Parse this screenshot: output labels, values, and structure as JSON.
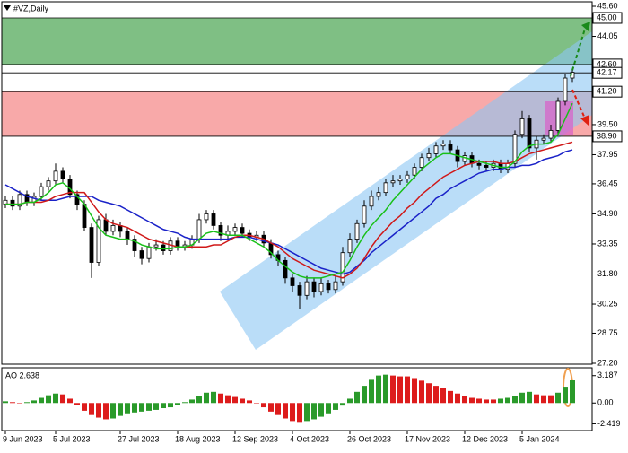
{
  "chart_data": [
    {
      "type": "candlestick",
      "title": "#VZ,Daily",
      "categories": [
        "9 Jun 2023",
        null,
        null,
        null,
        null,
        null,
        null,
        "5 Jul 2023",
        null,
        null,
        null,
        null,
        null,
        null,
        null,
        null,
        "27 Jul 2023",
        null,
        null,
        null,
        null,
        null,
        null,
        null,
        "18 Aug 2023",
        null,
        null,
        null,
        null,
        null,
        null,
        null,
        "12 Sep 2023",
        null,
        null,
        null,
        null,
        null,
        null,
        null,
        "4 Oct 2023",
        null,
        null,
        null,
        null,
        null,
        null,
        null,
        "26 Oct 2023",
        null,
        null,
        null,
        null,
        null,
        null,
        null,
        "17 Nov 2023",
        null,
        null,
        null,
        null,
        null,
        null,
        null,
        "12 Dec 2023",
        null,
        null,
        null,
        null,
        null,
        null,
        null,
        "5 Jan 2024",
        null,
        null,
        null,
        null,
        null,
        null,
        null
      ],
      "open": [
        35.4,
        35.6,
        35.3,
        35.9,
        35.5,
        35.8,
        36.3,
        36.6,
        37.1,
        36.7,
        35.9,
        35.4,
        34.2,
        32.4,
        34.6,
        34.0,
        34.3,
        34.0,
        33.6,
        33.0,
        32.6,
        33.2,
        33.3,
        33.0,
        33.5,
        33.2,
        33.3,
        33.6,
        34.6,
        34.9,
        34.3,
        33.8,
        34.0,
        34.2,
        33.9,
        33.7,
        33.8,
        33.4,
        32.8,
        32.5,
        31.6,
        31.2,
        30.7,
        31.4,
        30.9,
        31.3,
        31.0,
        31.4,
        32.9,
        33.6,
        34.4,
        35.3,
        35.8,
        36.0,
        36.5,
        36.6,
        36.7,
        36.9,
        37.3,
        37.8,
        38.0,
        38.4,
        38.5,
        38.2,
        37.6,
        37.9,
        37.5,
        37.4,
        37.3,
        37.5,
        37.2,
        37.5,
        39.0,
        39.8,
        38.3,
        38.7,
        38.8,
        39.2,
        40.7,
        41.9
      ],
      "high": [
        35.8,
        35.8,
        36.1,
        36.1,
        36.0,
        36.5,
        36.8,
        37.5,
        37.3,
        36.9,
        36.1,
        35.6,
        34.4,
        34.8,
        34.9,
        34.6,
        34.5,
        34.2,
        33.8,
        33.2,
        33.4,
        33.6,
        33.5,
        33.7,
        33.7,
        33.5,
        33.8,
        34.9,
        35.1,
        35.1,
        34.5,
        34.3,
        34.4,
        34.4,
        34.1,
        34.0,
        34.0,
        33.6,
        33.0,
        32.7,
        31.8,
        31.4,
        31.7,
        31.6,
        31.6,
        31.5,
        31.7,
        33.2,
        33.9,
        34.6,
        35.6,
        36.1,
        36.3,
        36.7,
        36.9,
        36.9,
        37.1,
        37.5,
        38.0,
        38.3,
        38.6,
        38.7,
        38.7,
        38.4,
        38.1,
        38.1,
        37.7,
        37.6,
        37.7,
        37.7,
        37.7,
        39.2,
        40.2,
        40.0,
        38.9,
        39.0,
        39.5,
        40.9,
        42.1,
        42.4
      ],
      "low": [
        35.2,
        35.1,
        35.1,
        35.3,
        35.3,
        35.6,
        36.1,
        36.4,
        36.5,
        35.7,
        35.1,
        34.0,
        31.6,
        32.2,
        33.8,
        33.8,
        33.7,
        33.3,
        32.7,
        32.3,
        32.4,
        33.0,
        32.8,
        32.8,
        33.0,
        33.0,
        33.1,
        33.4,
        34.4,
        34.1,
        33.5,
        33.6,
        33.8,
        33.7,
        33.5,
        33.5,
        33.2,
        32.6,
        32.2,
        31.3,
        30.9,
        30.0,
        30.5,
        30.6,
        30.7,
        30.8,
        30.8,
        31.2,
        32.7,
        33.4,
        34.2,
        35.1,
        35.6,
        35.8,
        36.3,
        36.4,
        36.5,
        36.7,
        37.1,
        37.6,
        37.8,
        38.2,
        38.0,
        37.3,
        37.4,
        37.3,
        37.2,
        37.1,
        37.1,
        37.0,
        37.0,
        37.3,
        38.8,
        38.1,
        37.7,
        38.5,
        38.6,
        39.0,
        40.5,
        41.7
      ],
      "close": [
        35.6,
        35.3,
        35.9,
        35.5,
        35.8,
        36.3,
        36.6,
        37.1,
        36.7,
        35.9,
        35.4,
        34.2,
        32.4,
        34.6,
        34.0,
        34.3,
        34.0,
        33.6,
        33.0,
        32.6,
        33.2,
        33.3,
        33.0,
        33.5,
        33.2,
        33.3,
        33.6,
        34.6,
        34.9,
        34.3,
        33.8,
        34.0,
        34.2,
        33.9,
        33.7,
        33.8,
        33.4,
        32.8,
        32.5,
        31.6,
        31.2,
        30.7,
        31.4,
        30.9,
        31.3,
        31.0,
        31.4,
        32.9,
        33.6,
        34.4,
        35.3,
        35.8,
        36.0,
        36.5,
        36.6,
        36.7,
        36.9,
        37.3,
        37.8,
        38.0,
        38.4,
        38.5,
        38.2,
        37.6,
        37.9,
        37.5,
        37.4,
        37.3,
        37.5,
        37.2,
        37.5,
        39.0,
        39.8,
        38.3,
        38.7,
        38.8,
        39.2,
        40.7,
        41.9,
        42.2
      ],
      "up_color": "#ffffff",
      "down_color": "#000000",
      "lines": [
        {
          "color": "#1a22c8",
          "values": [
            36.4,
            36.2,
            36.0,
            35.8,
            35.7,
            35.6,
            35.6,
            35.6,
            35.7,
            35.8,
            35.8,
            35.8,
            35.8,
            35.6,
            35.5,
            35.4,
            35.3,
            35.1,
            34.9,
            34.7,
            34.5,
            34.3,
            34.1,
            34.0,
            33.9,
            33.7,
            33.6,
            33.6,
            33.6,
            33.6,
            33.6,
            33.6,
            33.7,
            33.7,
            33.7,
            33.6,
            33.5,
            33.4,
            33.3,
            33.1,
            32.9,
            32.7,
            32.5,
            32.3,
            32.1,
            32.0,
            31.9,
            31.8,
            31.9,
            32.2,
            32.5,
            32.9,
            33.2,
            33.5,
            33.8,
            34.1,
            34.4,
            34.7,
            35.0,
            35.3,
            35.7,
            35.9,
            36.2,
            36.4,
            36.6,
            36.8,
            37.0,
            37.1,
            37.2,
            37.2,
            37.3,
            37.3,
            37.4,
            37.4,
            37.5,
            37.7,
            37.8,
            37.9,
            38.1,
            38.2
          ]
        },
        {
          "color": "#d01818",
          "values": [
            35.4,
            35.4,
            35.4,
            35.5,
            35.5,
            35.5,
            35.6,
            35.8,
            35.9,
            36.0,
            36.0,
            36.0,
            35.5,
            35.0,
            34.6,
            34.4,
            34.3,
            34.2,
            34.0,
            33.8,
            33.6,
            33.5,
            33.4,
            33.3,
            33.2,
            33.2,
            33.2,
            33.2,
            33.2,
            33.3,
            33.3,
            33.5,
            33.7,
            33.8,
            33.8,
            33.7,
            33.6,
            33.4,
            33.2,
            32.9,
            32.6,
            32.4,
            32.2,
            32.0,
            31.9,
            31.8,
            31.7,
            31.6,
            31.8,
            32.1,
            32.6,
            33.2,
            33.7,
            34.1,
            34.5,
            34.8,
            35.2,
            35.5,
            35.9,
            36.2,
            36.5,
            36.8,
            37.0,
            37.2,
            37.4,
            37.5,
            37.6,
            37.6,
            37.6,
            37.5,
            37.5,
            37.6,
            37.8,
            38.0,
            38.1,
            38.2,
            38.3,
            38.4,
            38.5,
            38.6
          ]
        },
        {
          "color": "#18c018",
          "values": [
            35.4,
            35.4,
            35.4,
            35.5,
            35.5,
            35.7,
            36.0,
            36.4,
            36.5,
            36.2,
            35.8,
            35.4,
            34.8,
            34.2,
            33.8,
            33.7,
            33.6,
            33.6,
            33.5,
            33.3,
            33.2,
            33.1,
            33.1,
            33.1,
            33.2,
            33.2,
            33.3,
            33.6,
            33.9,
            34.0,
            33.9,
            33.8,
            33.8,
            33.8,
            33.6,
            33.4,
            33.2,
            32.9,
            32.5,
            32.2,
            31.9,
            31.7,
            31.6,
            31.6,
            31.6,
            31.7,
            31.8,
            31.9,
            32.5,
            33.2,
            33.8,
            34.3,
            34.7,
            35.1,
            35.6,
            36.0,
            36.4,
            36.8,
            37.2,
            37.5,
            37.8,
            38.0,
            38.0,
            37.9,
            37.8,
            37.7,
            37.6,
            37.5,
            37.4,
            37.3,
            37.3,
            37.6,
            38.1,
            38.4,
            38.5,
            38.5,
            38.6,
            39.0,
            39.8,
            40.6
          ]
        }
      ],
      "zones": [
        {
          "from": 42.6,
          "to": 45.0,
          "color": "#7fbf84"
        },
        {
          "from": 38.9,
          "to": 41.2,
          "color": "#f8a9a9"
        }
      ],
      "levels": [
        {
          "value": 45.0,
          "label": "45.00"
        },
        {
          "value": 42.6,
          "label": "42.60"
        },
        {
          "value": 42.17,
          "label": "42.17"
        },
        {
          "value": 41.2,
          "label": "41.20"
        },
        {
          "value": 38.9,
          "label": "38.90"
        }
      ],
      "ylim": [
        27.2,
        45.6
      ],
      "yticks": [
        {
          "value": 45.6,
          "label": "45.60"
        },
        44.05,
        {
          "value": 39.5,
          "label": "39.50"
        },
        37.95,
        36.45,
        {
          "value": 34.9,
          "label": "34.90"
        },
        33.35,
        {
          "value": 31.8,
          "label": "31.80"
        },
        30.25,
        28.75,
        {
          "value": 27.2,
          "label": "27.20"
        }
      ]
    },
    {
      "type": "histogram",
      "title": "AO 2.638",
      "values": [
        0.2,
        0.1,
        0.0,
        0.1,
        0.3,
        0.6,
        0.9,
        1.1,
        1.0,
        0.5,
        -0.2,
        -0.9,
        -1.4,
        -1.7,
        -1.9,
        -1.8,
        -1.5,
        -1.2,
        -1.1,
        -1.0,
        -0.9,
        -0.8,
        -0.6,
        -0.5,
        -0.2,
        0.1,
        0.4,
        0.8,
        1.2,
        1.3,
        1.1,
        0.9,
        0.7,
        0.5,
        0.3,
        0.0,
        -0.5,
        -1.0,
        -1.4,
        -1.8,
        -2.1,
        -2.2,
        -2.1,
        -1.9,
        -1.6,
        -1.2,
        -0.8,
        -0.3,
        0.5,
        1.3,
        2.0,
        2.7,
        3.2,
        3.3,
        3.2,
        3.1,
        3.1,
        2.9,
        2.6,
        2.3,
        2.0,
        1.7,
        1.4,
        1.1,
        0.8,
        0.6,
        0.5,
        0.4,
        0.4,
        0.5,
        0.6,
        0.8,
        1.2,
        1.3,
        1.0,
        0.9,
        0.9,
        1.2,
        1.9,
        2.638
      ],
      "up_color": "#2a9a2a",
      "down_color": "#dd1c1c",
      "ylim": [
        -3.0,
        4.1
      ],
      "yticks": [
        3.187,
        {
          "value": 0,
          "label": "0.00"
        },
        -2.419
      ]
    }
  ]
}
